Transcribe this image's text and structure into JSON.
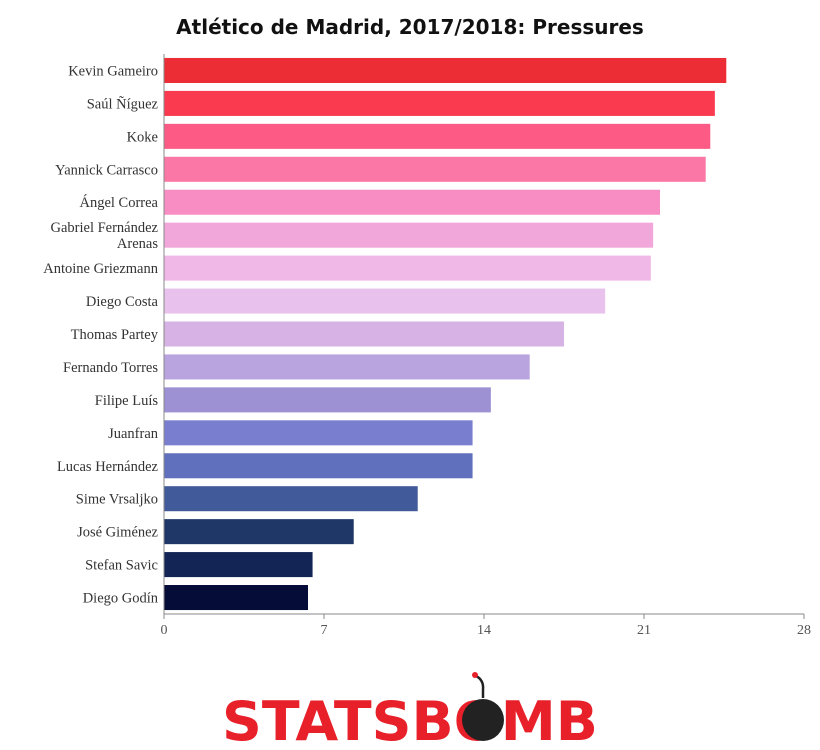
{
  "chart_data": {
    "type": "bar",
    "orientation": "horizontal",
    "title": "Atlético de Madrid, 2017/2018: Pressures",
    "categories": [
      "Kevin Gameiro",
      "Saúl Ñíguez",
      "Koke",
      "Yannick Carrasco",
      "Ángel Correa",
      "Gabriel Fernández Arenas",
      "Antoine Griezmann",
      "Diego Costa",
      "Thomas Partey",
      "Fernando Torres",
      "Filipe Luís",
      "Juanfran",
      "Lucas Hernández",
      "Sime Vrsaljko",
      "José Giménez",
      "Stefan Savic",
      "Diego Godín"
    ],
    "values": [
      24.6,
      24.1,
      23.9,
      23.7,
      21.7,
      21.4,
      21.3,
      19.3,
      17.5,
      16.0,
      14.3,
      13.5,
      13.5,
      11.1,
      8.3,
      6.5,
      6.3
    ],
    "colors": [
      "#ec2d35",
      "#f93a4f",
      "#fd5b86",
      "#fb77a6",
      "#f78dc3",
      "#f1a7d9",
      "#efb8e6",
      "#e8c2ec",
      "#d6b2e5",
      "#baa4df",
      "#9d90d3",
      "#7a7ece",
      "#6070bc",
      "#405a9a",
      "#1e3767",
      "#132555",
      "#060c38"
    ],
    "xticks": [
      "0",
      "7",
      "14",
      "21",
      "28"
    ],
    "xlim": [
      0,
      28
    ],
    "xlabel": "",
    "ylabel": "",
    "grid": false,
    "legend": "none"
  },
  "branding": {
    "logo_text": "STATSBOMB"
  }
}
